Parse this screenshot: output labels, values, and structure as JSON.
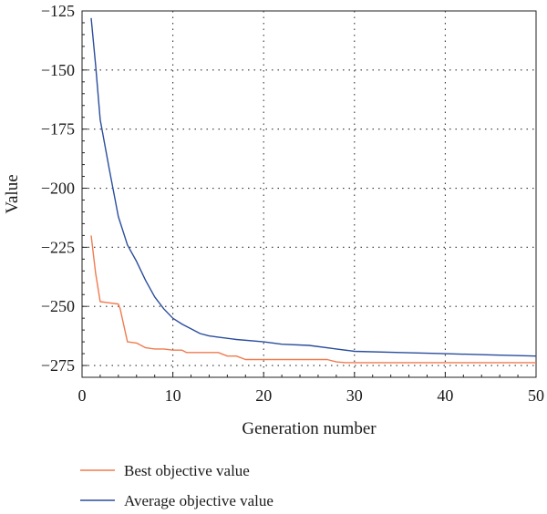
{
  "chart_data": {
    "type": "line",
    "title": "",
    "xlabel": "Generation number",
    "ylabel": "Value",
    "xlim": [
      0,
      50
    ],
    "ylim": [
      -280,
      -125
    ],
    "xticks": [
      0,
      10,
      20,
      30,
      40,
      50
    ],
    "xtick_labels": [
      "0",
      "10",
      "20",
      "30",
      "40",
      "50"
    ],
    "yticks": [
      -125,
      -150,
      -175,
      -200,
      -225,
      -250,
      -275
    ],
    "ytick_labels": [
      "−125",
      "−150",
      "−175",
      "−200",
      "−225",
      "−250",
      "−275"
    ],
    "grid": "dotted",
    "legend_position": "bottom-left, below plot",
    "series": [
      {
        "name": "Best objective value",
        "color": "#f07b4f",
        "x": [
          1,
          1.5,
          2,
          3,
          4,
          4.2,
          5,
          6,
          7,
          8,
          9,
          10,
          11,
          11.5,
          12,
          13,
          14,
          15,
          16,
          17,
          18,
          20,
          25,
          27,
          28,
          29,
          30,
          35,
          40,
          45,
          50
        ],
        "y": [
          -220,
          -236,
          -248,
          -248.5,
          -249,
          -251,
          -265,
          -265.5,
          -267.5,
          -268,
          -268,
          -268.5,
          -268.5,
          -269.5,
          -269.5,
          -269.5,
          -269.5,
          -269.5,
          -271,
          -271,
          -272.5,
          -272.5,
          -272.5,
          -272.5,
          -273.5,
          -273.8,
          -273.8,
          -273.8,
          -273.8,
          -273.8,
          -273.8
        ]
      },
      {
        "name": "Average objective value",
        "color": "#2a4d9c",
        "x": [
          1,
          1.5,
          2,
          3,
          4,
          5,
          6,
          7,
          8,
          9,
          10,
          11,
          12,
          13,
          14,
          15,
          17,
          20,
          22,
          25,
          28,
          30,
          35,
          40,
          45,
          50
        ],
        "y": [
          -128,
          -148,
          -171,
          -192,
          -212,
          -224,
          -231,
          -239,
          -246,
          -251,
          -255,
          -257.5,
          -259.5,
          -261.5,
          -262.5,
          -263,
          -264,
          -265,
          -266,
          -266.5,
          -268,
          -269,
          -269.5,
          -270,
          -270.5,
          -271
        ]
      }
    ]
  }
}
